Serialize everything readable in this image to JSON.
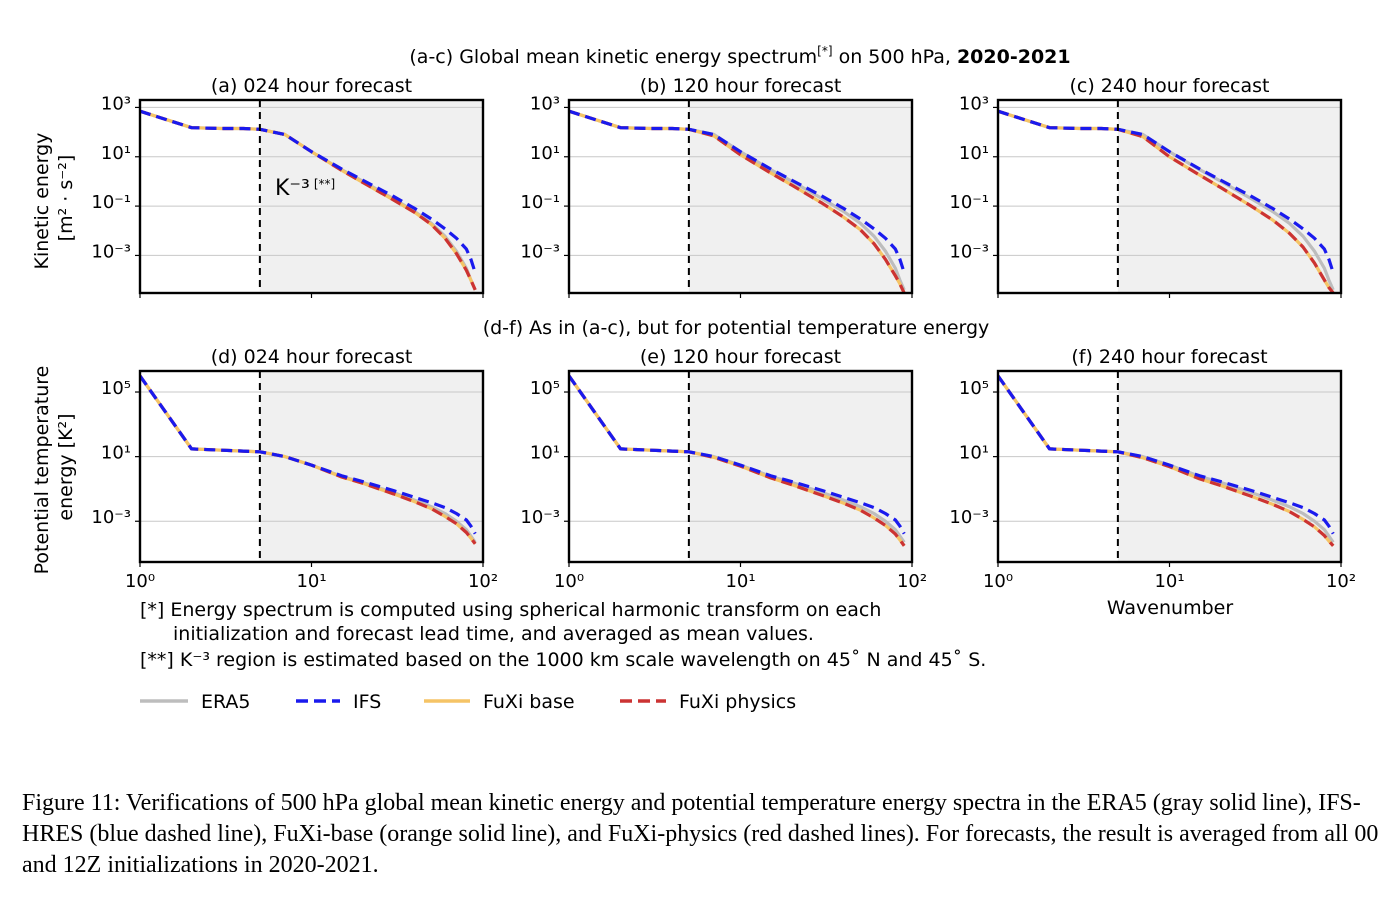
{
  "figure": {
    "suptitle_prefix": "(a-c) Global mean kinetic energy spectrum",
    "suptitle_ref": "[*]",
    "suptitle_suffix": " on 500 hPa, ",
    "suptitle_bold": "2020-2021",
    "row2_title": "(d-f) As in (a-c), but for potential temperature energy",
    "row1_ylabel": [
      "Kinetic energy",
      "[m² · s⁻²]"
    ],
    "row2_ylabel": [
      "Potential temperature",
      "energy [K²]"
    ],
    "xlabel": "Wavenumber",
    "k3_label": "K⁻³",
    "k3_ref": "[**]",
    "footnotes": [
      "[*] Energy spectrum is computed using spherical harmonic transform on each",
      "initialization and forecast lead time, and averaged as mean values.",
      "[**] K⁻³ region is estimated based on the 1000 km scale wavelength on 45˚ N and 45˚ S."
    ],
    "legend": [
      {
        "label": "ERA5",
        "color": "#bdbdbd",
        "dash": false
      },
      {
        "label": "IFS",
        "color": "#1a1aee",
        "dash": true
      },
      {
        "label": "FuXi base",
        "color": "#f5c466",
        "dash": false
      },
      {
        "label": "FuXi physics",
        "color": "#cc3333",
        "dash": true
      }
    ],
    "colors": {
      "shade": "#f0f0f0",
      "grid": "#c8c8c8",
      "era5": "#bdbdbd",
      "ifs": "#1a1aee",
      "fuxi_base": "#f5c466",
      "fuxi_physics": "#cc3333"
    }
  },
  "caption": "Figure 11: Verifications of 500 hPa global mean kinetic energy and potential temperature energy spectra in the ERA5 (gray solid line), IFS-HRES (blue dashed line), FuXi-base (orange solid line), and FuXi-physics (red dashed lines). For forecasts, the result is averaged from all 00 and 12Z initializations in 2020-2021.",
  "chart_data": [
    {
      "type": "line",
      "title": "(a) 024 hour forecast",
      "xscale": "log",
      "yscale": "log",
      "xlim": [
        1,
        100
      ],
      "ylim": [
        3e-05,
        2000
      ],
      "x_ticks": [
        "10⁰",
        "10¹",
        "10²"
      ],
      "y_ticks": [
        "10³",
        "10¹",
        "10⁻¹",
        "10⁻³"
      ],
      "vline_x": 5,
      "shaded_from_x": 5,
      "grid": "horizontal",
      "ylabel": "Kinetic energy [m² · s⁻²]",
      "x": [
        1,
        2,
        3,
        4,
        5,
        7,
        10,
        15,
        20,
        30,
        40,
        50,
        60,
        70,
        80,
        85,
        90
      ],
      "series": [
        {
          "name": "ERA5",
          "values": [
            700,
            150,
            140,
            140,
            130,
            80,
            16,
            3,
            1,
            0.2,
            0.06,
            0.02,
            0.006,
            0.0015,
            0.0003,
            0.0001,
            4e-05
          ]
        },
        {
          "name": "IFS",
          "values": [
            700,
            150,
            140,
            140,
            130,
            80,
            16,
            3.2,
            1.1,
            0.25,
            0.08,
            0.03,
            0.012,
            0.005,
            0.0018,
            0.0007,
            0.0002
          ]
        },
        {
          "name": "FuXi base",
          "values": [
            700,
            150,
            140,
            140,
            130,
            80,
            16,
            2.8,
            0.9,
            0.18,
            0.055,
            0.018,
            0.005,
            0.0012,
            0.00025,
            0.0001,
            4e-05
          ]
        },
        {
          "name": "FuXi physics",
          "values": [
            700,
            150,
            140,
            140,
            130,
            80,
            16,
            2.8,
            0.9,
            0.18,
            0.055,
            0.018,
            0.005,
            0.0012,
            0.00025,
            0.0001,
            4e-05
          ]
        }
      ]
    },
    {
      "type": "line",
      "title": "(b) 120 hour forecast",
      "xscale": "log",
      "yscale": "log",
      "xlim": [
        1,
        100
      ],
      "ylim": [
        3e-05,
        2000
      ],
      "x_ticks": [
        "10⁰",
        "10¹",
        "10²"
      ],
      "y_ticks": [
        "10³",
        "10¹",
        "10⁻¹",
        "10⁻³"
      ],
      "vline_x": 5,
      "shaded_from_x": 5,
      "grid": "horizontal",
      "x": [
        1,
        2,
        3,
        4,
        5,
        7,
        10,
        15,
        20,
        30,
        40,
        50,
        60,
        70,
        80,
        85,
        90
      ],
      "series": [
        {
          "name": "ERA5",
          "values": [
            700,
            150,
            140,
            140,
            130,
            80,
            16,
            3,
            1,
            0.2,
            0.06,
            0.02,
            0.006,
            0.0015,
            0.0003,
            0.0001,
            4e-05
          ]
        },
        {
          "name": "IFS",
          "values": [
            700,
            150,
            140,
            140,
            130,
            80,
            16,
            3.2,
            1.1,
            0.25,
            0.08,
            0.03,
            0.012,
            0.005,
            0.0018,
            0.0007,
            0.0002
          ]
        },
        {
          "name": "FuXi base",
          "values": [
            700,
            150,
            140,
            140,
            130,
            70,
            12,
            2.2,
            0.7,
            0.13,
            0.035,
            0.011,
            0.003,
            0.0007,
            0.00015,
            7e-05,
            3e-05
          ]
        },
        {
          "name": "FuXi physics",
          "values": [
            700,
            150,
            140,
            140,
            130,
            70,
            12,
            2.2,
            0.7,
            0.13,
            0.035,
            0.011,
            0.003,
            0.0007,
            0.00015,
            7e-05,
            3e-05
          ]
        }
      ]
    },
    {
      "type": "line",
      "title": "(c) 240 hour forecast",
      "xscale": "log",
      "yscale": "log",
      "xlim": [
        1,
        100
      ],
      "ylim": [
        3e-05,
        2000
      ],
      "x_ticks": [
        "10⁰",
        "10¹",
        "10²"
      ],
      "y_ticks": [
        "10³",
        "10¹",
        "10⁻¹",
        "10⁻³"
      ],
      "vline_x": 5,
      "shaded_from_x": 5,
      "grid": "horizontal",
      "x": [
        1,
        2,
        3,
        4,
        5,
        7,
        10,
        15,
        20,
        30,
        40,
        50,
        60,
        70,
        80,
        85,
        90
      ],
      "series": [
        {
          "name": "ERA5",
          "values": [
            700,
            150,
            140,
            140,
            130,
            80,
            16,
            3,
            1,
            0.2,
            0.06,
            0.02,
            0.006,
            0.0015,
            0.0003,
            0.0001,
            4e-05
          ]
        },
        {
          "name": "IFS",
          "values": [
            700,
            150,
            140,
            140,
            130,
            80,
            16,
            3.2,
            1.1,
            0.25,
            0.08,
            0.03,
            0.012,
            0.005,
            0.0018,
            0.0007,
            0.0002
          ]
        },
        {
          "name": "FuXi base",
          "values": [
            700,
            150,
            140,
            140,
            130,
            65,
            10,
            1.8,
            0.55,
            0.1,
            0.027,
            0.008,
            0.0022,
            0.0005,
            0.0001,
            5e-05,
            3e-05
          ]
        },
        {
          "name": "FuXi physics",
          "values": [
            700,
            150,
            140,
            140,
            130,
            65,
            10,
            1.8,
            0.55,
            0.1,
            0.027,
            0.008,
            0.0022,
            0.0005,
            0.0001,
            5e-05,
            3e-05
          ]
        }
      ]
    },
    {
      "type": "line",
      "title": "(d) 024 hour forecast",
      "xscale": "log",
      "yscale": "log",
      "xlim": [
        1,
        100
      ],
      "ylim": [
        3e-06,
        2000000
      ],
      "x_ticks": [
        "10⁰",
        "10¹",
        "10²"
      ],
      "y_ticks": [
        "10⁵",
        "10¹",
        "10⁻³"
      ],
      "vline_x": 5,
      "shaded_from_x": 5,
      "grid": "horizontal",
      "ylabel": "Potential temperature energy [K²]",
      "x": [
        1,
        2,
        3,
        4,
        5,
        7,
        10,
        15,
        20,
        30,
        40,
        50,
        60,
        70,
        80,
        85,
        90
      ],
      "series": [
        {
          "name": "ERA5",
          "values": [
            1000000,
            30,
            25,
            22,
            20,
            10,
            3,
            0.6,
            0.25,
            0.06,
            0.02,
            0.008,
            0.003,
            0.001,
            0.0003,
            0.00012,
            5e-05
          ]
        },
        {
          "name": "IFS",
          "values": [
            1000000,
            30,
            25,
            22,
            20,
            10,
            3,
            0.65,
            0.28,
            0.08,
            0.03,
            0.014,
            0.007,
            0.003,
            0.0012,
            0.0005,
            0.00017
          ]
        },
        {
          "name": "FuXi base",
          "values": [
            1000000,
            30,
            25,
            22,
            20,
            10,
            3,
            0.55,
            0.22,
            0.05,
            0.016,
            0.006,
            0.002,
            0.0007,
            0.0002,
            9e-05,
            4e-05
          ]
        },
        {
          "name": "FuXi physics",
          "values": [
            1000000,
            30,
            25,
            22,
            20,
            10,
            3,
            0.55,
            0.22,
            0.05,
            0.016,
            0.006,
            0.002,
            0.0007,
            0.0002,
            9e-05,
            4e-05
          ]
        }
      ]
    },
    {
      "type": "line",
      "title": "(e) 120 hour forecast",
      "xscale": "log",
      "yscale": "log",
      "xlim": [
        1,
        100
      ],
      "ylim": [
        3e-06,
        2000000
      ],
      "x_ticks": [
        "10⁰",
        "10¹",
        "10²"
      ],
      "y_ticks": [
        "10⁵",
        "10¹",
        "10⁻³"
      ],
      "vline_x": 5,
      "shaded_from_x": 5,
      "grid": "horizontal",
      "x": [
        1,
        2,
        3,
        4,
        5,
        7,
        10,
        15,
        20,
        30,
        40,
        50,
        60,
        70,
        80,
        85,
        90
      ],
      "series": [
        {
          "name": "ERA5",
          "values": [
            1000000,
            30,
            25,
            22,
            20,
            10,
            3,
            0.6,
            0.25,
            0.06,
            0.02,
            0.008,
            0.003,
            0.001,
            0.0003,
            0.00012,
            5e-05
          ]
        },
        {
          "name": "IFS",
          "values": [
            1000000,
            30,
            25,
            22,
            20,
            10,
            3,
            0.65,
            0.28,
            0.08,
            0.03,
            0.014,
            0.007,
            0.003,
            0.0012,
            0.0005,
            0.00017
          ]
        },
        {
          "name": "FuXi base",
          "values": [
            1000000,
            30,
            25,
            22,
            20,
            9,
            2.6,
            0.48,
            0.18,
            0.04,
            0.013,
            0.0048,
            0.0016,
            0.00055,
            0.00016,
            7e-05,
            3e-05
          ]
        },
        {
          "name": "FuXi physics",
          "values": [
            1000000,
            30,
            25,
            22,
            20,
            9,
            2.6,
            0.48,
            0.18,
            0.04,
            0.013,
            0.0048,
            0.0016,
            0.00055,
            0.00016,
            7e-05,
            3e-05
          ]
        }
      ]
    },
    {
      "type": "line",
      "title": "(f) 240 hour forecast",
      "xscale": "log",
      "yscale": "log",
      "xlim": [
        1,
        100
      ],
      "ylim": [
        3e-06,
        2000000
      ],
      "x_ticks": [
        "10⁰",
        "10¹",
        "10²"
      ],
      "y_ticks": [
        "10⁵",
        "10¹",
        "10⁻³"
      ],
      "vline_x": 5,
      "shaded_from_x": 5,
      "grid": "horizontal",
      "xlabel": "Wavenumber",
      "x": [
        1,
        2,
        3,
        4,
        5,
        7,
        10,
        15,
        20,
        30,
        40,
        50,
        60,
        70,
        80,
        85,
        90
      ],
      "series": [
        {
          "name": "ERA5",
          "values": [
            1000000,
            30,
            25,
            22,
            20,
            10,
            3,
            0.6,
            0.25,
            0.06,
            0.02,
            0.008,
            0.003,
            0.001,
            0.0003,
            0.00012,
            5e-05
          ]
        },
        {
          "name": "IFS",
          "values": [
            1000000,
            30,
            25,
            22,
            20,
            10,
            3,
            0.65,
            0.28,
            0.08,
            0.03,
            0.014,
            0.007,
            0.003,
            0.0012,
            0.0005,
            0.00017
          ]
        },
        {
          "name": "FuXi base",
          "values": [
            1000000,
            30,
            25,
            22,
            20,
            8.5,
            2.4,
            0.42,
            0.16,
            0.035,
            0.011,
            0.004,
            0.0013,
            0.00045,
            0.00013,
            6e-05,
            3e-05
          ]
        },
        {
          "name": "FuXi physics",
          "values": [
            1000000,
            30,
            25,
            22,
            20,
            8.5,
            2.4,
            0.42,
            0.16,
            0.035,
            0.011,
            0.004,
            0.0013,
            0.00045,
            0.00013,
            6e-05,
            3e-05
          ]
        }
      ]
    }
  ]
}
